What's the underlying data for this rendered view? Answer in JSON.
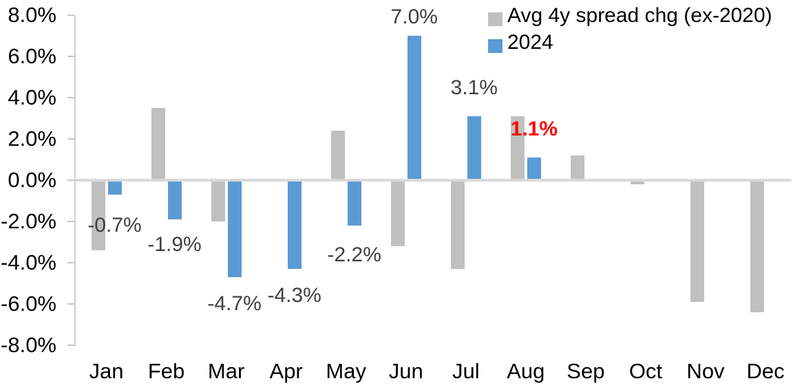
{
  "chart_data": {
    "type": "bar",
    "title": "",
    "categories": [
      "Jan",
      "Feb",
      "Mar",
      "Apr",
      "May",
      "Jun",
      "Jul",
      "Aug",
      "Sep",
      "Oct",
      "Nov",
      "Dec"
    ],
    "series": [
      {
        "name": "Avg 4y spread chg (ex-2020)",
        "color": "#c0c0c0",
        "values": [
          -3.4,
          3.5,
          -2.0,
          0.0,
          2.4,
          -3.2,
          -4.3,
          3.1,
          1.2,
          -0.2,
          -5.9,
          -6.4
        ]
      },
      {
        "name": "2024",
        "color": "#5b9bd5",
        "values": [
          -0.7,
          -1.9,
          -4.7,
          -4.3,
          -2.2,
          7.0,
          3.1,
          1.1,
          null,
          null,
          null,
          null
        ]
      }
    ],
    "data_labels": [
      {
        "category": "Jan",
        "text": "-0.7%",
        "highlight": false
      },
      {
        "category": "Feb",
        "text": "-1.9%",
        "highlight": false
      },
      {
        "category": "Mar",
        "text": "-4.7%",
        "highlight": false
      },
      {
        "category": "Apr",
        "text": "-4.3%",
        "highlight": false
      },
      {
        "category": "May",
        "text": "-2.2%",
        "highlight": false
      },
      {
        "category": "Jun",
        "text": "7.0%",
        "highlight": false
      },
      {
        "category": "Jul",
        "text": "3.1%",
        "highlight": false
      },
      {
        "category": "Aug",
        "text": "1.1%",
        "highlight": true
      }
    ],
    "y_axis": {
      "min": -8,
      "max": 8,
      "step": 2,
      "tick_labels": [
        "8.0%",
        "6.0%",
        "4.0%",
        "2.0%",
        "0.0%",
        "-2.0%",
        "-4.0%",
        "-6.0%",
        "-8.0%"
      ]
    },
    "legend_position": "top-right",
    "grid": "zero-line-only",
    "colors": {
      "data_label": "#404040",
      "highlight_label": "#ff0000",
      "axis_line": "#d0cece",
      "zero_line": "#d9d9d9",
      "axis_text": "#000000"
    }
  }
}
